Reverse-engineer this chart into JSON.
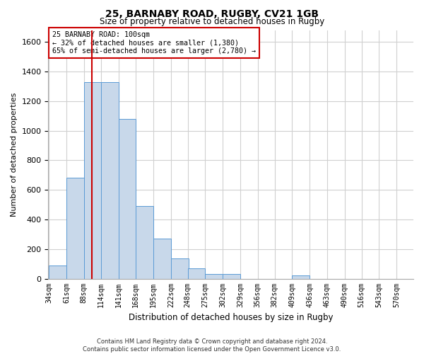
{
  "title_line1": "25, BARNABY ROAD, RUGBY, CV21 1GB",
  "title_line2": "Size of property relative to detached houses in Rugby",
  "xlabel": "Distribution of detached houses by size in Rugby",
  "ylabel": "Number of detached properties",
  "footer_line1": "Contains HM Land Registry data © Crown copyright and database right 2024.",
  "footer_line2": "Contains public sector information licensed under the Open Government Licence v3.0.",
  "annotation_line1": "25 BARNABY ROAD: 100sqm",
  "annotation_line2": "← 32% of detached houses are smaller (1,380)",
  "annotation_line3": "65% of semi-detached houses are larger (2,780) →",
  "property_size_sqm": 100,
  "bar_color": "#c8d8ea",
  "bar_edge_color": "#5b9bd5",
  "red_line_color": "#cc0000",
  "grid_color": "#d0d0d0",
  "bin_labels": [
    "34sqm",
    "61sqm",
    "88sqm",
    "114sqm",
    "141sqm",
    "168sqm",
    "195sqm",
    "222sqm",
    "248sqm",
    "275sqm",
    "302sqm",
    "329sqm",
    "356sqm",
    "382sqm",
    "409sqm",
    "436sqm",
    "463sqm",
    "490sqm",
    "516sqm",
    "543sqm",
    "570sqm"
  ],
  "bin_edges": [
    34,
    61,
    88,
    114,
    141,
    168,
    195,
    222,
    248,
    275,
    302,
    329,
    356,
    382,
    409,
    436,
    463,
    490,
    516,
    543,
    570
  ],
  "bar_heights": [
    90,
    680,
    1330,
    1330,
    1080,
    490,
    270,
    135,
    70,
    30,
    30,
    0,
    0,
    0,
    20,
    0,
    0,
    0,
    0,
    0
  ],
  "ylim": [
    0,
    1680
  ],
  "yticks": [
    0,
    200,
    400,
    600,
    800,
    1000,
    1200,
    1400,
    1600
  ],
  "annotation_box_color": "white",
  "annotation_box_edgecolor": "#cc0000"
}
